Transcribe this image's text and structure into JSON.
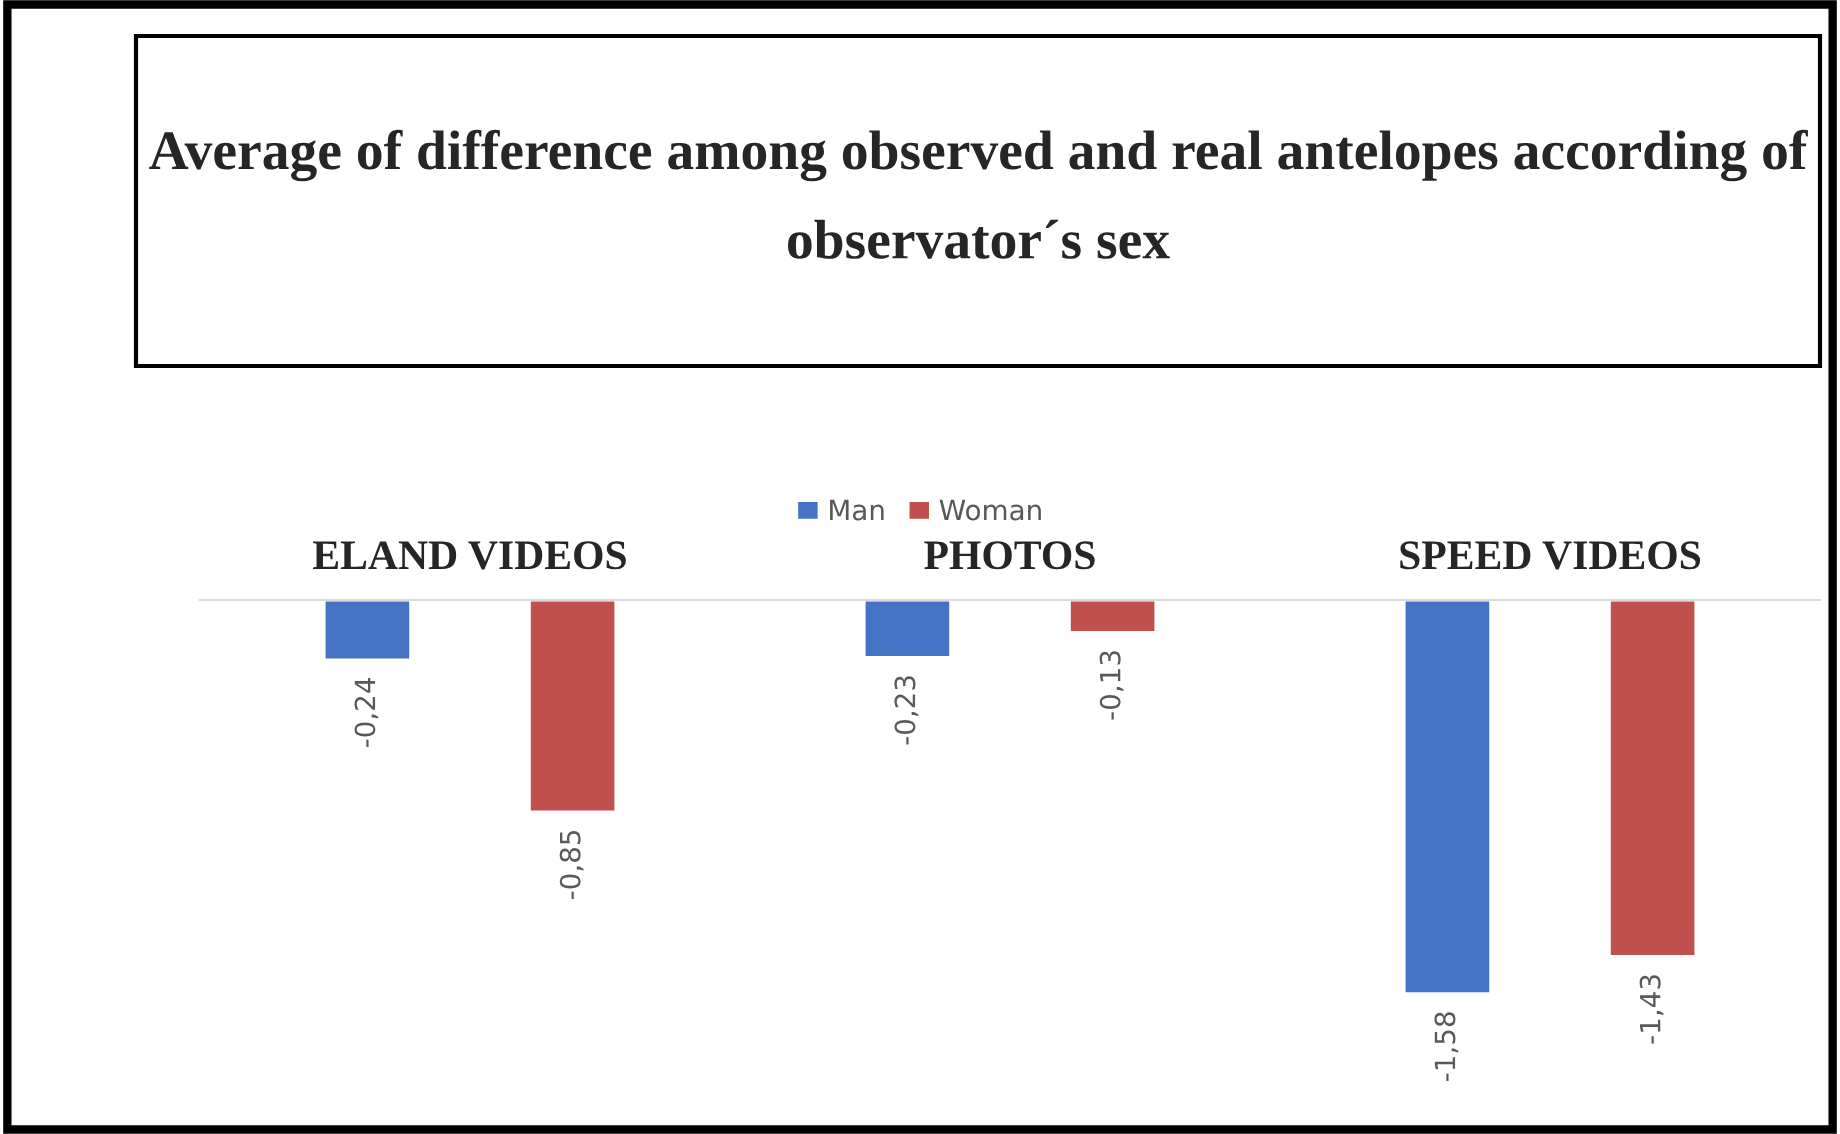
{
  "chart_data": {
    "type": "bar",
    "title": "Average of difference among observed and real antelopes according of observator´s sex",
    "categories": [
      "ELAND VIDEOS",
      "PHOTOS",
      "SPEED VIDEOS"
    ],
    "series": [
      {
        "name": "Man",
        "color": "#4472c4",
        "values": [
          -0.24,
          -0.23,
          -1.58
        ],
        "value_labels": [
          "-0,24",
          "-0,23",
          "-1,58"
        ]
      },
      {
        "name": "Woman",
        "color": "#c0504d",
        "values": [
          -0.85,
          -0.13,
          -1.43
        ],
        "value_labels": [
          "-0,85",
          "-0,13",
          "-1,43"
        ]
      }
    ],
    "legend": "top"
  }
}
